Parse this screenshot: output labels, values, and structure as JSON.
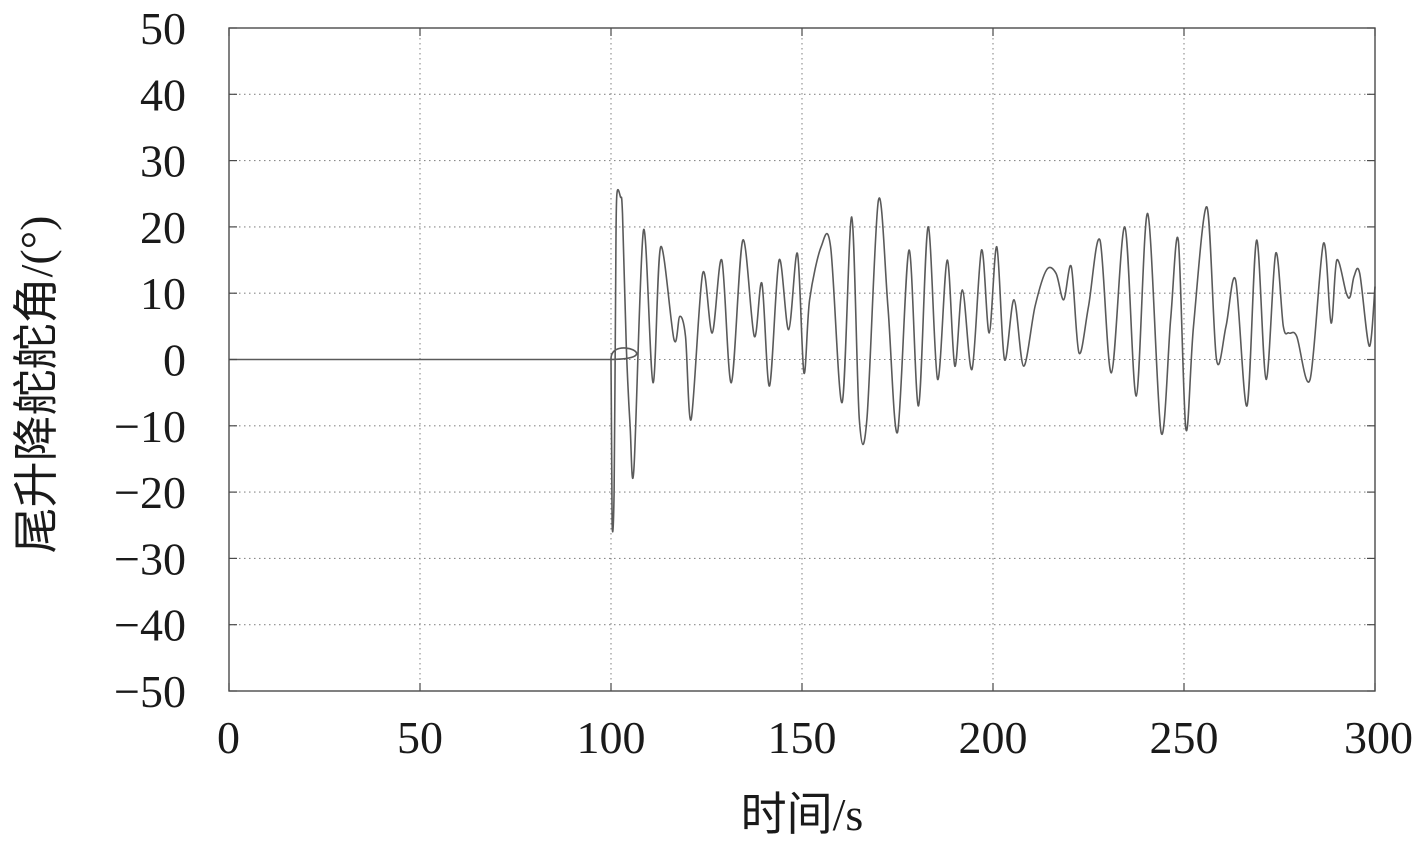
{
  "chart_data": {
    "type": "line",
    "title": "",
    "xlabel": "时间/s",
    "ylabel": "尾升降舵舵角/(°)",
    "xlim": [
      0,
      300
    ],
    "ylim": [
      -50,
      50
    ],
    "xticks": [
      0,
      50,
      100,
      150,
      200,
      250,
      300
    ],
    "xtick_labels": [
      "0",
      "50",
      "100",
      "150",
      "200",
      "250",
      "300"
    ],
    "yticks": [
      50,
      40,
      30,
      20,
      10,
      0,
      -10,
      -20,
      -30,
      -40,
      -50
    ],
    "ytick_labels": [
      "50",
      "40",
      "30",
      "20",
      "10",
      "0",
      "−10",
      "−20",
      "−30",
      "−40",
      "−50"
    ],
    "grid": true,
    "line_color": "#5a5a5a",
    "grid_color": "#8a8a8a",
    "series": [
      {
        "x": [
          0,
          99.5,
          100.0,
          100.3,
          100.8,
          101.2,
          101.5,
          102.5,
          103.0,
          104.0,
          105.0,
          106.0,
          108.5,
          111.0,
          113.0,
          116.5,
          118.0,
          119.5,
          121.0,
          124.0,
          126.5,
          129.0,
          131.5,
          134.5,
          137.5,
          139.5,
          141.5,
          144.0,
          146.5,
          148.8,
          150.5,
          152.0,
          155.0,
          157.5,
          160.5,
          163.0,
          165.0,
          167.0,
          170.0,
          172.5,
          175.0,
          178.0,
          180.5,
          183.0,
          185.5,
          188.0,
          190.0,
          192.0,
          194.5,
          197.0,
          199.0,
          201.0,
          203.0,
          205.5,
          208.0,
          211.0,
          214.0,
          216.5,
          218.5,
          220.5,
          222.5,
          225.0,
          228.0,
          231.0,
          234.5,
          237.5,
          240.5,
          244.0,
          246.5,
          248.5,
          250.5,
          252.5,
          256.0,
          258.5,
          261.0,
          263.5,
          266.5,
          269.0,
          271.5,
          274.0,
          276.0,
          277.5,
          279.5,
          283.0,
          286.5,
          288.5,
          290.0,
          292.5,
          293.5,
          294.5,
          296.0,
          298.5,
          300.0
        ],
        "y": [
          0,
          0,
          0,
          -24.5,
          -20,
          10,
          24.5,
          24.5,
          22,
          2,
          -10,
          -16.5,
          19.5,
          -3.5,
          17,
          3,
          6.5,
          3.5,
          -9,
          13,
          4,
          15,
          -3.5,
          18,
          3.5,
          11.5,
          -4,
          15,
          4.5,
          16,
          -2,
          9,
          17,
          17,
          -6.5,
          21.5,
          -9,
          -9,
          24,
          8,
          -11,
          16.5,
          -7,
          20,
          -3,
          15,
          -1,
          10.5,
          -1.5,
          16.5,
          4,
          17,
          0,
          9,
          -1,
          8,
          13.5,
          13,
          9,
          14,
          1,
          8,
          18,
          -2,
          20,
          -5.5,
          22,
          -11,
          6,
          18,
          -10.5,
          5,
          23,
          0,
          5,
          12,
          -7,
          18,
          -3,
          16,
          5,
          4,
          3.5,
          -3,
          17.5,
          5.5,
          15,
          10,
          9.5,
          12.5,
          13,
          2,
          11
        ]
      }
    ]
  }
}
